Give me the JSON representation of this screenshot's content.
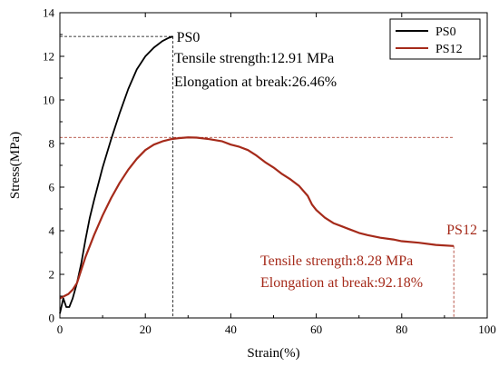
{
  "chart_data": {
    "type": "line",
    "xlabel": "Strain(%)",
    "ylabel": "Stress(MPa)",
    "xlim": [
      0,
      100
    ],
    "ylim": [
      0,
      14
    ],
    "x_ticks": [
      "0",
      "20",
      "40",
      "60",
      "80",
      "100"
    ],
    "y_ticks": [
      "0",
      "2",
      "4",
      "6",
      "8",
      "10",
      "12",
      "14"
    ],
    "grid": false,
    "legend_position": "top-right",
    "series": [
      {
        "name": "PS0",
        "color": "#000000",
        "points": [
          [
            0,
            0.2
          ],
          [
            0.8,
            0.9
          ],
          [
            1.5,
            0.5
          ],
          [
            2.2,
            0.5
          ],
          [
            3,
            0.9
          ],
          [
            4,
            1.6
          ],
          [
            5,
            2.5
          ],
          [
            6,
            3.6
          ],
          [
            7,
            4.6
          ],
          [
            8,
            5.4
          ],
          [
            10,
            6.9
          ],
          [
            12,
            8.2
          ],
          [
            14,
            9.4
          ],
          [
            16,
            10.5
          ],
          [
            18,
            11.4
          ],
          [
            20,
            12.0
          ],
          [
            22,
            12.4
          ],
          [
            24,
            12.7
          ],
          [
            25.5,
            12.85
          ],
          [
            26.46,
            12.91
          ]
        ],
        "end_label": "PS0",
        "annotations": [
          "Tensile strength:12.91 MPa",
          "Elongation at break:26.46%"
        ]
      },
      {
        "name": "PS12",
        "color": "#a52a1a",
        "points": [
          [
            0,
            0.9
          ],
          [
            1,
            1.0
          ],
          [
            2,
            1.1
          ],
          [
            3,
            1.3
          ],
          [
            4,
            1.6
          ],
          [
            5,
            2.2
          ],
          [
            6,
            2.8
          ],
          [
            8,
            3.8
          ],
          [
            10,
            4.7
          ],
          [
            12,
            5.5
          ],
          [
            14,
            6.2
          ],
          [
            16,
            6.8
          ],
          [
            18,
            7.3
          ],
          [
            20,
            7.7
          ],
          [
            22,
            7.95
          ],
          [
            24,
            8.1
          ],
          [
            26,
            8.2
          ],
          [
            28,
            8.25
          ],
          [
            30,
            8.28
          ],
          [
            32,
            8.27
          ],
          [
            35,
            8.2
          ],
          [
            38,
            8.1
          ],
          [
            40,
            7.95
          ],
          [
            42,
            7.85
          ],
          [
            44,
            7.7
          ],
          [
            46,
            7.45
          ],
          [
            48,
            7.15
          ],
          [
            50,
            6.9
          ],
          [
            52,
            6.6
          ],
          [
            54,
            6.35
          ],
          [
            56,
            6.05
          ],
          [
            58,
            5.6
          ],
          [
            59,
            5.2
          ],
          [
            60,
            4.95
          ],
          [
            62,
            4.6
          ],
          [
            64,
            4.35
          ],
          [
            66,
            4.2
          ],
          [
            68,
            4.05
          ],
          [
            70,
            3.9
          ],
          [
            72,
            3.8
          ],
          [
            75,
            3.68
          ],
          [
            78,
            3.6
          ],
          [
            80,
            3.52
          ],
          [
            84,
            3.45
          ],
          [
            88,
            3.35
          ],
          [
            92.18,
            3.3
          ]
        ],
        "end_label": "PS12",
        "annotations": [
          "Tensile strength:8.28 MPa",
          "Elongation at break:92.18%"
        ]
      }
    ],
    "reference_lines": [
      {
        "series": "PS0",
        "x": 26.46,
        "y": 12.91
      },
      {
        "series": "PS12",
        "x": 92.18,
        "y": 8.28,
        "y_end": 3.3
      }
    ]
  }
}
